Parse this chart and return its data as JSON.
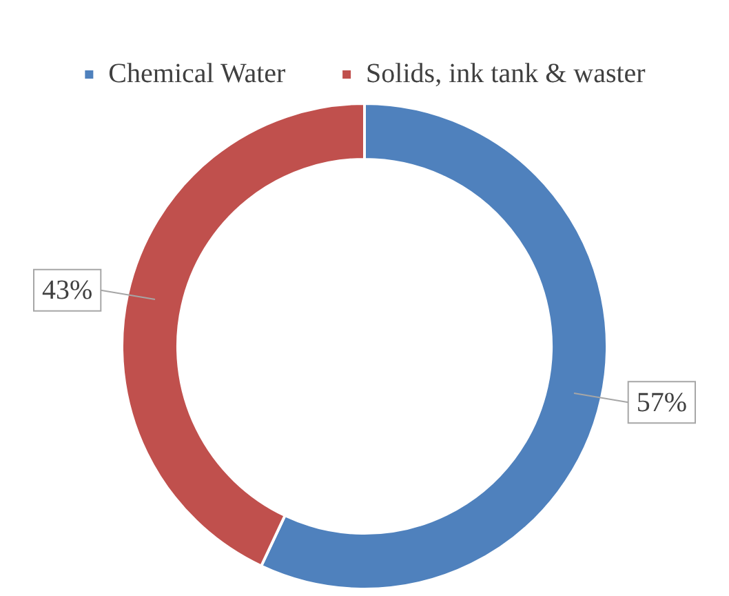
{
  "chart_data": {
    "type": "donut",
    "categories": [
      "Chemical Water",
      "Solids, ink tank & waster"
    ],
    "values": [
      57,
      43
    ],
    "colors": [
      "#4f81bd",
      "#c0504d"
    ],
    "value_labels": [
      "57%",
      "43%"
    ],
    "legend": "top"
  }
}
